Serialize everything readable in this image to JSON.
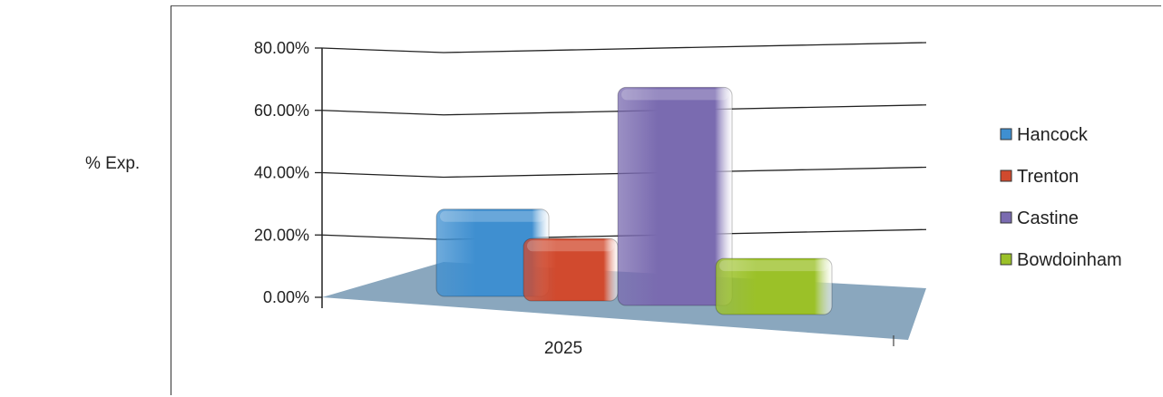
{
  "ylabel_outside": "% Exp.",
  "chart_data": {
    "type": "bar",
    "style": "3d-clustered-column",
    "categories": [
      "2025"
    ],
    "series": [
      {
        "name": "Hancock",
        "values": [
          28
        ],
        "color": "#3f8fd0"
      },
      {
        "name": "Trenton",
        "values": [
          20
        ],
        "color": "#d14a2e"
      },
      {
        "name": "Castine",
        "values": [
          70
        ],
        "color": "#7a6bb0"
      },
      {
        "name": "Bowdoinham",
        "values": [
          18
        ],
        "color": "#9bc128"
      }
    ],
    "ylim": [
      0,
      80
    ],
    "yticks": [
      "0.00%",
      "20.00%",
      "40.00%",
      "60.00%",
      "80.00%"
    ],
    "ytick_values": [
      0,
      20,
      40,
      60,
      80
    ],
    "grid": true,
    "legend": "right",
    "floor_color": "#8aa7be"
  }
}
